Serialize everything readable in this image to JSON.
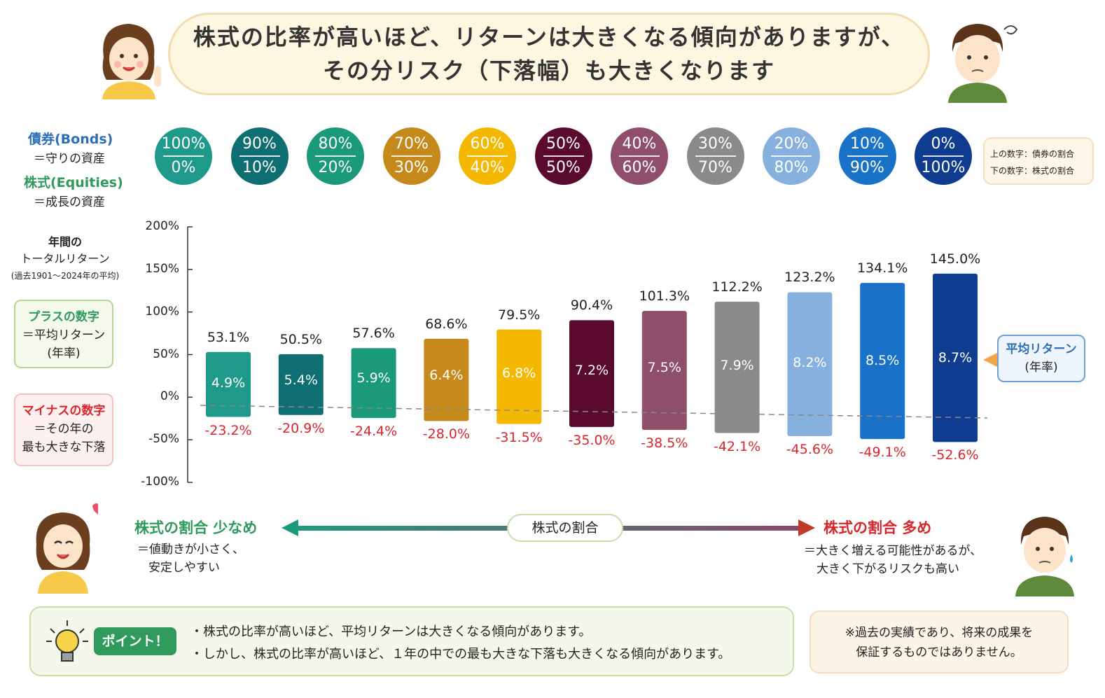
{
  "header": {
    "title_line1": "株式の比率が高いほど、リターンは大きくなる傾向がありますが、",
    "title_line2": "その分リスク（下落幅）も大きくなります"
  },
  "legend": {
    "bonds_label": "債券(Bonds)",
    "bonds_sub": "＝守りの資産",
    "equities_label": "株式(Equities)",
    "equities_sub": "＝成長の資産",
    "note_top": "上の数字：債券の割合",
    "note_bottom": "下の数字：株式の割合"
  },
  "allocations": [
    {
      "bonds": "100%",
      "equities": "0%",
      "color": "#1f9a8a"
    },
    {
      "bonds": "90%",
      "equities": "10%",
      "color": "#0f6e72"
    },
    {
      "bonds": "80%",
      "equities": "20%",
      "color": "#1a9a7a"
    },
    {
      "bonds": "70%",
      "equities": "30%",
      "color": "#c68a1c"
    },
    {
      "bonds": "60%",
      "equities": "40%",
      "color": "#f5b800"
    },
    {
      "bonds": "50%",
      "equities": "50%",
      "color": "#5a0a2c"
    },
    {
      "bonds": "40%",
      "equities": "60%",
      "color": "#8f4e6a"
    },
    {
      "bonds": "30%",
      "equities": "70%",
      "color": "#8a8a8a"
    },
    {
      "bonds": "20%",
      "equities": "80%",
      "color": "#86b0dd"
    },
    {
      "bonds": "10%",
      "equities": "90%",
      "color": "#1a72c8"
    },
    {
      "bonds": "0%",
      "equities": "100%",
      "color": "#0f3c8f"
    }
  ],
  "left_panel": {
    "axis_title_1": "年間の",
    "axis_title_2": "トータルリターン",
    "axis_title_3": "(過去1901〜2024年の平均)",
    "plus_title": "プラスの数字",
    "plus_sub1": "＝平均リターン",
    "plus_sub2": "(年率)",
    "minus_title": "マイナスの数字",
    "minus_sub1": "＝その年の",
    "minus_sub2": "最も大きな下落"
  },
  "right_panel": {
    "avg_label_1": "平均リターン",
    "avg_label_2": "(年率)"
  },
  "chart_data": {
    "type": "bar",
    "categories": [
      "100%/0%",
      "90%/10%",
      "80%/20%",
      "70%/30%",
      "60%/40%",
      "50%/50%",
      "40%/60%",
      "30%/70%",
      "20%/80%",
      "10%/90%",
      "0%/100%"
    ],
    "ylabel": "年間のトータルリターン",
    "ylim": [
      -100,
      200
    ],
    "yticks": [
      "200%",
      "150%",
      "100%",
      "50%",
      "0%",
      "-50%",
      "-100%"
    ],
    "ytick_values": [
      200,
      150,
      100,
      50,
      0,
      -50,
      -100
    ],
    "series": [
      {
        "values": [
          53.1,
          50.5,
          57.6,
          68.6,
          79.5,
          90.4,
          101.3,
          112.2,
          123.2,
          134.1,
          145.0
        ],
        "labels": [
          "53.1%",
          "50.5%",
          "57.6%",
          "68.6%",
          "79.5%",
          "90.4%",
          "101.3%",
          "112.2%",
          "123.2%",
          "134.1%",
          "145.0%"
        ]
      },
      {
        "values": [
          -23.2,
          -20.9,
          -24.4,
          -28.0,
          -31.5,
          -35.0,
          -38.5,
          -42.1,
          -45.6,
          -49.1,
          -52.6
        ],
        "labels": [
          "-23.2%",
          "-20.9%",
          "-24.4%",
          "-28.0%",
          "-31.5%",
          "-35.0%",
          "-38.5%",
          "-42.1%",
          "-45.6%",
          "-49.1%",
          "-52.6%"
        ]
      },
      {
        "values": [
          4.9,
          5.4,
          5.9,
          6.4,
          6.8,
          7.2,
          7.5,
          7.9,
          8.2,
          8.5,
          8.7
        ],
        "labels": [
          "4.9%",
          "5.4%",
          "5.9%",
          "6.4%",
          "6.8%",
          "7.2%",
          "7.5%",
          "7.9%",
          "8.2%",
          "8.5%",
          "8.7%"
        ]
      }
    ]
  },
  "arrow_row": {
    "left_title": "株式の割合 少なめ",
    "left_sub1": "＝値動きが小さく、",
    "left_sub2": "安定しやすい",
    "center_label": "株式の割合",
    "right_title": "株式の割合 多め",
    "right_sub1": "＝大きく増える可能性があるが、",
    "right_sub2": "大きく下がるリスクも高い"
  },
  "point": {
    "badge": "ポイント！",
    "line1": "・株式の比率が高いほど、平均リターンは大きくなる傾向があります。",
    "line2": "・しかし、株式の比率が高いほど、１年の中での最も大きな下落も大きくなる傾向があります。"
  },
  "disclaimer": {
    "line1": "※過去の実績であり、将来の成果を",
    "line2": "保証するものではありません。"
  }
}
